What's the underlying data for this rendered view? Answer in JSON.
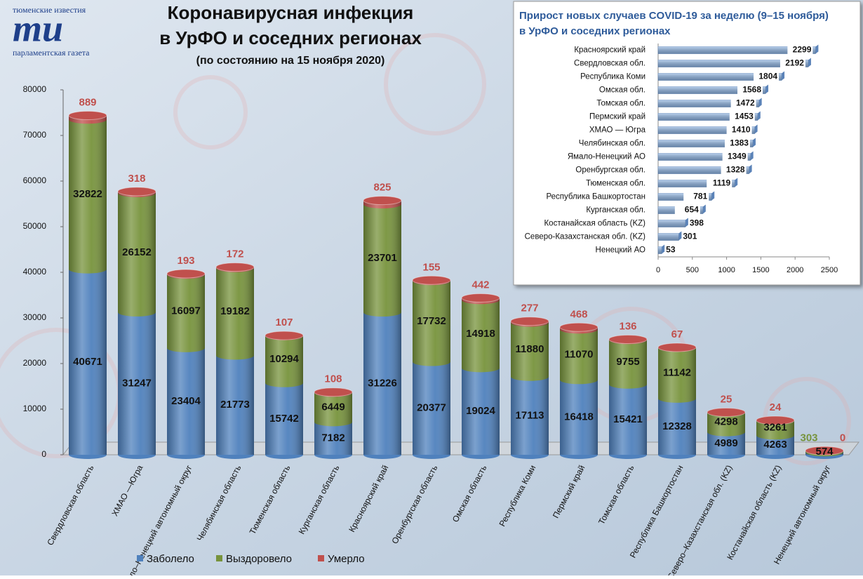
{
  "logo": {
    "top": "тюменские известия",
    "mark": "ти",
    "bottom": "парламентская газета"
  },
  "chart_data": [
    {
      "type": "bar",
      "stacked": true,
      "title": [
        "Коронавирусная инфекция",
        "в УрФО и соседних регионах"
      ],
      "subtitle": "(по состоянию на 15 ноября 2020)",
      "categories": [
        "Свердловская область",
        "ХМАО —Югра",
        "Ямало–Ненецкий автономный округ",
        "Челябинская область",
        "Тюменская область",
        "Курганская область",
        "Красноярский край",
        "Оренбургская область",
        "Омская область",
        "Республика Коми",
        "Пермский край",
        "Томская область",
        "Республика Башкортостан",
        "Северо–Казахстанская  обл. (KZ)",
        "Костанайская  область (KZ)",
        "Ненецкий автономный округ"
      ],
      "series": [
        {
          "name": "Заболело",
          "color": "#4f81bd",
          "values": [
            40671,
            31247,
            23404,
            21773,
            15742,
            7182,
            31226,
            20377,
            19024,
            17113,
            16418,
            15421,
            12328,
            4989,
            4263,
            574
          ]
        },
        {
          "name": "Выздоровело",
          "color": "#77933c",
          "values": [
            32822,
            26152,
            16097,
            19182,
            10294,
            6449,
            23701,
            17732,
            14918,
            11880,
            11070,
            9755,
            11142,
            4298,
            3261,
            303
          ]
        },
        {
          "name": "Умерло",
          "color": "#c0504d",
          "values": [
            889,
            318,
            193,
            172,
            107,
            108,
            825,
            155,
            442,
            277,
            468,
            136,
            67,
            25,
            24,
            0
          ]
        }
      ],
      "ylim": [
        0,
        80000
      ],
      "yticks": [
        0,
        10000,
        20000,
        30000,
        40000,
        50000,
        60000,
        70000,
        80000
      ],
      "legend": "bottom"
    },
    {
      "type": "barh",
      "title": [
        "Прирост новых случаев COVID-19 за неделю (9–15 ноября)",
        "в УрФО и соседних регионах"
      ],
      "categories": [
        "Красноярский край",
        "Свердловская обл.",
        "Республика Коми",
        "Омская обл.",
        "Томская обл.",
        "Пермский край",
        "ХМАО — Югра",
        "Челябинская обл.",
        "Ямало-Ненецкий АО",
        "Оренбургская обл.",
        "Тюменская обл.",
        "Республика Башкортостан",
        "Курганская обл.",
        "Костанайская область (KZ)",
        "Северо-Казахстанская обл. (KZ)",
        "Ненецкий АО"
      ],
      "values": [
        2299,
        2192,
        1804,
        1568,
        1472,
        1453,
        1410,
        1383,
        1349,
        1328,
        1119,
        781,
        654,
        398,
        301,
        53
      ],
      "color": "#8db3e2",
      "xlim": [
        0,
        2500
      ],
      "xticks": [
        0,
        500,
        1000,
        1500,
        2000,
        2500
      ]
    }
  ]
}
